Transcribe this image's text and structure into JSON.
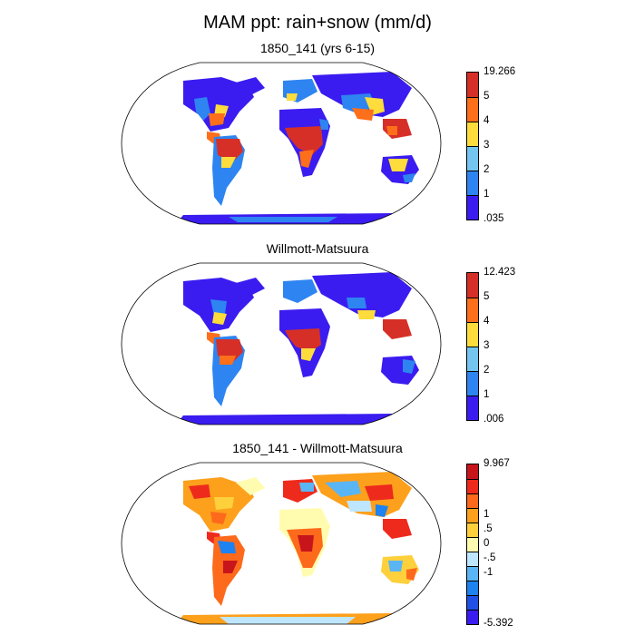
{
  "figure": {
    "title": "MAM ppt: rain+snow (mm/d)"
  },
  "panels": [
    {
      "title": "1850_141 (yrs 6-15)",
      "colorbar": {
        "labels": [
          "19.266",
          "5",
          "4",
          "3",
          "2",
          "1",
          ".035"
        ],
        "colors": [
          "#d62f27",
          "#fd6f1a",
          "#fddc3c",
          "#74c6f0",
          "#2e84f0",
          "#3a1cf0"
        ]
      }
    },
    {
      "title": "Willmott-Matsuura",
      "colorbar": {
        "labels": [
          "12.423",
          "5",
          "4",
          "3",
          "2",
          "1",
          ".006"
        ],
        "colors": [
          "#d62f27",
          "#fd6f1a",
          "#fddc3c",
          "#74c6f0",
          "#2e84f0",
          "#3a1cf0"
        ]
      }
    },
    {
      "title": "1850_141 - Willmott-Matsuura",
      "colorbar": {
        "labels": [
          "9.967",
          "1",
          ".5",
          "0",
          "-.5",
          "-1",
          "-5.392"
        ],
        "colors": [
          "#c8151c",
          "#ee2a1c",
          "#fd6a1c",
          "#fda01c",
          "#fdd03c",
          "#fffcb0",
          "#bfe6ff",
          "#5ab5f5",
          "#1e82f0",
          "#2050e6",
          "#3a1cf0"
        ]
      }
    }
  ]
}
